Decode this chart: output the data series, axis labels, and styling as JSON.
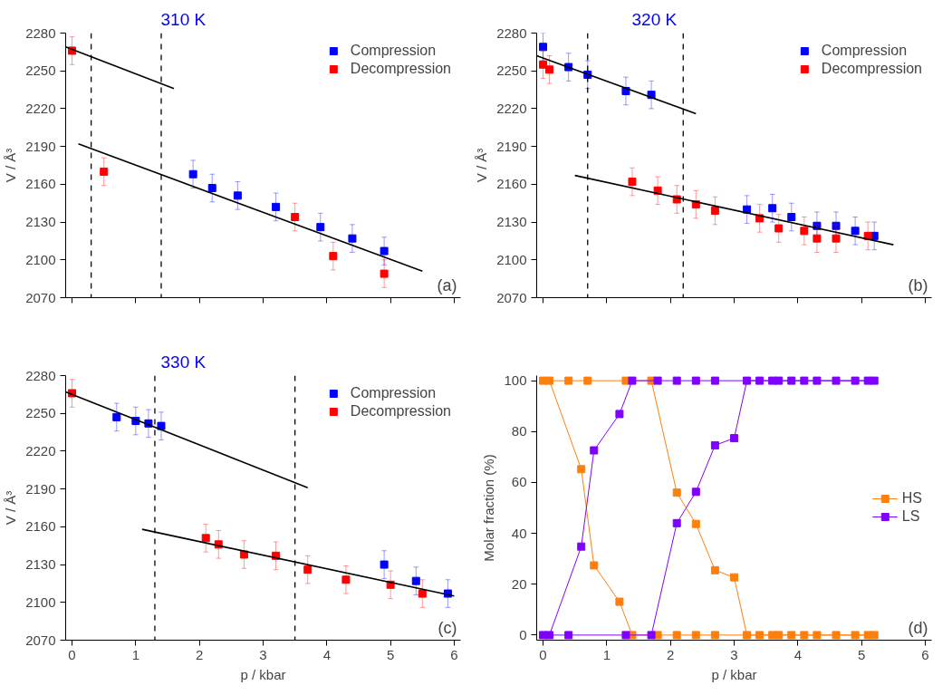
{
  "chart_data": [
    {
      "type": "scatter",
      "title": "310 K",
      "ylabel": "V / Å³",
      "annotations": [
        "(a)"
      ],
      "xlim": [
        -0.1,
        6.1
      ],
      "ylim": [
        2070,
        2280
      ],
      "xticks": [
        0,
        1,
        2,
        3,
        4,
        5,
        6
      ],
      "yticks": [
        2070,
        2100,
        2130,
        2160,
        2190,
        2220,
        2250,
        2280
      ],
      "tick_labels": "y",
      "marker": "square",
      "legend": "top right",
      "ref_lines": [
        {
          "axis": "x",
          "value": 0.3,
          "color": "#000000",
          "line_style": "dashed"
        },
        {
          "axis": "x",
          "value": 1.4,
          "color": "#000000",
          "line_style": "dashed"
        }
      ],
      "series": [
        {
          "name": "Compression",
          "color": "#0000ff",
          "x": [
            1.9,
            2.2,
            2.6,
            3.2,
            3.9,
            4.4,
            4.9
          ],
          "values": [
            2168,
            2157,
            2151,
            2142,
            2126,
            2117,
            2107
          ],
          "errors": [
            11,
            11,
            11,
            11,
            11,
            11,
            11
          ]
        },
        {
          "name": "Decompression",
          "color": "#ff0000",
          "x": [
            0,
            0.5,
            3.5,
            4.1,
            4.9
          ],
          "values": [
            2266,
            2170,
            2134,
            2103,
            2089
          ],
          "errors": [
            11,
            11,
            11,
            11,
            11
          ]
        },
        {
          "type": "line",
          "color": "#000000",
          "marker": "none",
          "x": [
            -0.1,
            1.6
          ],
          "values": [
            2269,
            2236
          ]
        },
        {
          "type": "line",
          "color": "#000000",
          "marker": "none",
          "x": [
            0.1,
            5.5
          ],
          "values": [
            2192,
            2091
          ]
        }
      ]
    },
    {
      "type": "scatter",
      "title": "320 K",
      "ylabel": "V / Å³",
      "annotations": [
        "(b)"
      ],
      "xlim": [
        -0.1,
        6.1
      ],
      "ylim": [
        2070,
        2280
      ],
      "xticks": [
        0,
        1,
        2,
        3,
        4,
        5,
        6
      ],
      "yticks": [
        2070,
        2100,
        2130,
        2160,
        2190,
        2220,
        2250,
        2280
      ],
      "tick_labels": "y",
      "marker": "square",
      "legend": "top right",
      "ref_lines": [
        {
          "axis": "x",
          "value": 0.7,
          "color": "#000000",
          "line_style": "dashed"
        },
        {
          "axis": "x",
          "value": 2.2,
          "color": "#000000",
          "line_style": "dashed"
        }
      ],
      "series": [
        {
          "name": "Compression",
          "color": "#0000ff",
          "x": [
            0,
            0.4,
            0.7,
            1.3,
            1.7,
            3.2,
            3.6,
            3.9,
            4.3,
            4.6,
            4.9,
            5.2
          ],
          "values": [
            2269,
            2253,
            2247,
            2234,
            2231,
            2140,
            2141,
            2134,
            2127,
            2127,
            2123,
            2119
          ],
          "errors": [
            11,
            11,
            11,
            11,
            11,
            11,
            11,
            11,
            11,
            11,
            11,
            11
          ]
        },
        {
          "name": "Decompression",
          "color": "#ff0000",
          "x": [
            0,
            0.1,
            1.4,
            1.8,
            2.1,
            2.4,
            2.7,
            3.4,
            3.7,
            4.1,
            4.3,
            4.6,
            5.1
          ],
          "values": [
            2255,
            2251,
            2162,
            2155,
            2148,
            2144,
            2139,
            2133,
            2125,
            2123,
            2117,
            2117,
            2119
          ],
          "errors": [
            11,
            11,
            11,
            11,
            11,
            11,
            11,
            11,
            11,
            11,
            11,
            11,
            11
          ]
        },
        {
          "type": "line",
          "color": "#000000",
          "marker": "none",
          "x": [
            -0.1,
            2.4
          ],
          "values": [
            2262,
            2216
          ]
        },
        {
          "type": "line",
          "color": "#000000",
          "marker": "none",
          "x": [
            0.5,
            5.5
          ],
          "values": [
            2167,
            2112
          ]
        }
      ]
    },
    {
      "type": "scatter",
      "title": "330 K",
      "xlabel": "p / kbar",
      "ylabel": "V / Å³",
      "annotations": [
        "(c)"
      ],
      "xlim": [
        -0.1,
        6.1
      ],
      "ylim": [
        2070,
        2280
      ],
      "xticks": [
        0,
        1,
        2,
        3,
        4,
        5,
        6
      ],
      "yticks": [
        2070,
        2100,
        2130,
        2160,
        2190,
        2220,
        2250,
        2280
      ],
      "marker": "square",
      "legend": "top right",
      "ref_lines": [
        {
          "axis": "x",
          "value": 1.3,
          "color": "#000000",
          "line_style": "dashed"
        },
        {
          "axis": "x",
          "value": 3.5,
          "color": "#000000",
          "line_style": "dashed"
        }
      ],
      "series": [
        {
          "name": "Compression",
          "color": "#0000ff",
          "x": [
            0.7,
            1.0,
            1.2,
            1.4,
            4.9,
            5.4,
            5.9
          ],
          "values": [
            2247,
            2244,
            2242,
            2240,
            2130,
            2117,
            2107
          ],
          "errors": [
            11,
            11,
            11,
            11,
            11,
            11,
            11
          ]
        },
        {
          "name": "Decompression",
          "color": "#ff0000",
          "x": [
            0,
            2.1,
            2.3,
            2.7,
            3.2,
            3.7,
            4.3,
            5.0,
            5.5
          ],
          "values": [
            2266,
            2151,
            2146,
            2138,
            2137,
            2126,
            2118,
            2114,
            2107
          ],
          "errors": [
            11,
            11,
            11,
            11,
            11,
            11,
            11,
            11,
            11
          ]
        },
        {
          "type": "line",
          "color": "#000000",
          "marker": "none",
          "x": [
            -0.1,
            3.7
          ],
          "values": [
            2267,
            2191
          ]
        },
        {
          "type": "line",
          "color": "#000000",
          "marker": "none",
          "x": [
            1.1,
            6.0
          ],
          "values": [
            2158,
            2105
          ]
        }
      ]
    },
    {
      "type": "line",
      "xlabel": "p / kbar",
      "ylabel": "Molar fraction (%)",
      "annotations": [
        "(d)"
      ],
      "xlim": [
        -0.1,
        6.1
      ],
      "ylim": [
        -2,
        102
      ],
      "xticks": [
        0,
        1,
        2,
        3,
        4,
        5,
        6
      ],
      "yticks": [
        0,
        20,
        40,
        60,
        80,
        100
      ],
      "marker": "square",
      "legend": "right",
      "series": [
        {
          "name": "HS",
          "color": "#ff7f0e",
          "x": [
            0,
            0.4,
            0.7,
            1.3,
            1.7,
            2.1,
            2.4,
            2.7,
            3.0,
            3.2,
            3.4,
            3.6,
            3.7,
            3.9,
            4.1,
            4.3,
            4.6,
            4.9,
            5.1,
            5.2,
            2.7,
            2.4,
            2.1,
            1.8,
            1.4,
            1.2,
            0.8,
            0.6,
            0.1
          ],
          "values": [
            100,
            100,
            100,
            100,
            100,
            56,
            43.7,
            25.5,
            22.7,
            0,
            0,
            0,
            0,
            0,
            0,
            0,
            0,
            0,
            0,
            0,
            0,
            0,
            0,
            0,
            0,
            13.1,
            27.4,
            65.2,
            100
          ]
        },
        {
          "name": "LS",
          "color": "#8000ff",
          "x": [
            0,
            0.4,
            1.3,
            1.7,
            2.1,
            2.4,
            2.7,
            3.0,
            3.2,
            3.4,
            3.6,
            3.7,
            3.9,
            4.1,
            4.3,
            4.6,
            4.9,
            5.1,
            5.2,
            2.7,
            2.4,
            2.1,
            1.8,
            1.4,
            1.2,
            0.8,
            0.6,
            0.1
          ],
          "values": [
            0,
            0,
            0,
            0,
            44,
            56.3,
            74.6,
            77.4,
            100,
            100,
            100,
            100,
            100,
            100,
            100,
            100,
            100,
            100,
            100,
            100,
            100,
            100,
            100,
            100,
            86.9,
            72.6,
            34.8,
            0
          ]
        }
      ]
    }
  ]
}
